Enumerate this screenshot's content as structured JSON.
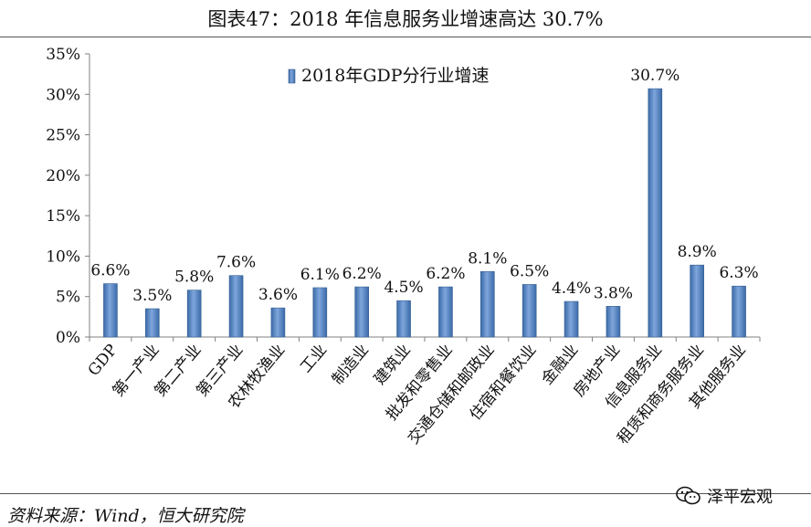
{
  "figure_title": "图表47：2018 年信息服务业增速高达 30.7%",
  "source_text": "资料来源：Wind，恒大研究院",
  "watermark_text": "泽平宏观",
  "watermark_icon": "wechat-icon",
  "chart_data": {
    "type": "bar",
    "title": "",
    "xlabel": "",
    "ylabel": "",
    "ylim": [
      0,
      35
    ],
    "yticks": [
      "0%",
      "5%",
      "10%",
      "15%",
      "20%",
      "25%",
      "30%",
      "35%"
    ],
    "grid": false,
    "legend_position": "top-center",
    "series": [
      {
        "name": "2018年GDP分行业增速",
        "color": "#4F81BD",
        "values": [
          6.6,
          3.5,
          5.8,
          7.6,
          3.6,
          6.1,
          6.2,
          4.5,
          6.2,
          8.1,
          6.5,
          4.4,
          3.8,
          30.7,
          8.9,
          6.3
        ],
        "labels": [
          "6.6%",
          "3.5%",
          "5.8%",
          "7.6%",
          "3.6%",
          "6.1%",
          "6.2%",
          "4.5%",
          "6.2%",
          "8.1%",
          "6.5%",
          "4.4%",
          "3.8%",
          "30.7%",
          "8.9%",
          "6.3%"
        ]
      }
    ],
    "categories": [
      "GDP",
      "第一产业",
      "第二产业",
      "第三产业",
      "农林牧渔业",
      "工业",
      "制造业",
      "建筑业",
      "批发和零售业",
      "交通仓储和邮政业",
      "住宿和餐饮业",
      "金融业",
      "房地产业",
      "信息服务业",
      "租赁和商务服务业",
      "其他服务业"
    ]
  }
}
